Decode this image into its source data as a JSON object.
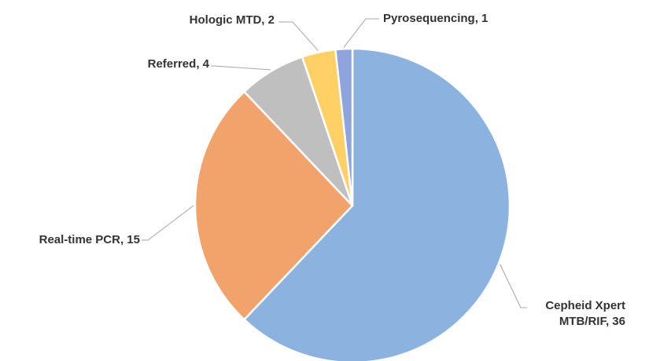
{
  "chart_data": {
    "type": "pie",
    "values": [
      36,
      15,
      4,
      2,
      1
    ],
    "value_labels": [
      "Cepheid Xpert MTB/RIF, 36",
      "Real-time PCR, 15",
      "Referred, 4",
      "Hologic MTD, 2",
      "Pyrosequencing, 1"
    ],
    "colors": [
      "#8cb3e0",
      "#f2a36b",
      "#bfbfbf",
      "#ffd066",
      "#8fa3dc"
    ]
  }
}
